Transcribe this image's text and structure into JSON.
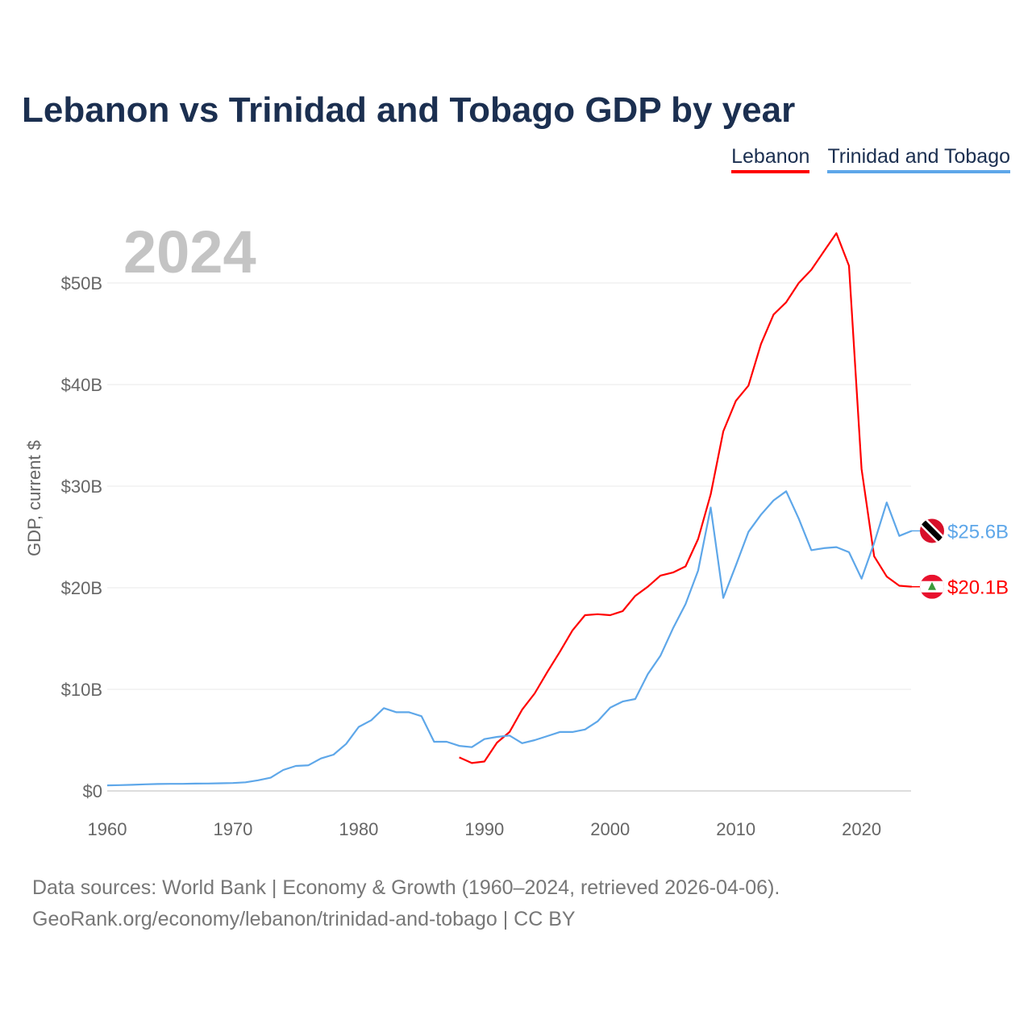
{
  "title": "Lebanon vs Trinidad and Tobago GDP by year",
  "year_label": "2024",
  "footer": {
    "line1": "Data sources: World Bank | Economy & Growth (1960–2024, retrieved 2026-04-06).",
    "line2": "GeoRank.org/economy/lebanon/trinidad-and-tobago | CC BY"
  },
  "chart_data": {
    "type": "line",
    "title": "Lebanon vs Trinidad and Tobago GDP by year",
    "xlabel": "",
    "ylabel": "GDP, current $",
    "xlim": [
      1960,
      2024
    ],
    "ylim": [
      0,
      55
    ],
    "grid": true,
    "legend_position": "top-right",
    "x_ticks": [
      "1960",
      "1970",
      "1980",
      "1990",
      "2000",
      "2010",
      "2020"
    ],
    "y_ticks": [
      {
        "v": 0,
        "label": "$0"
      },
      {
        "v": 10,
        "label": "$10B"
      },
      {
        "v": 20,
        "label": "$20B"
      },
      {
        "v": 30,
        "label": "$30B"
      },
      {
        "v": 40,
        "label": "$40B"
      },
      {
        "v": 50,
        "label": "$50B"
      }
    ],
    "series": [
      {
        "name": "Lebanon",
        "color": "#ff0000",
        "end_label": "$20.1B",
        "flag": "lebanon-flag",
        "start_year": 1988,
        "values": [
          3.3,
          2.75,
          2.9,
          4.75,
          5.8,
          8.0,
          9.6,
          11.7,
          13.7,
          15.8,
          17.3,
          17.4,
          17.3,
          17.7,
          19.2,
          20.1,
          21.2,
          21.5,
          22.1,
          24.8,
          29.2,
          35.4,
          38.4,
          39.9,
          44.0,
          46.9,
          48.1,
          50.0,
          51.3,
          53.1,
          54.9,
          51.7,
          31.7,
          23.1,
          21.1,
          20.2,
          20.1
        ]
      },
      {
        "name": "Trinidad and Tobago",
        "color": "#5ea7e9",
        "end_label": "$25.6B",
        "flag": "trinidad-flag",
        "start_year": 1960,
        "values": [
          0.55,
          0.57,
          0.6,
          0.65,
          0.68,
          0.7,
          0.7,
          0.72,
          0.73,
          0.75,
          0.78,
          0.85,
          1.05,
          1.3,
          2.06,
          2.46,
          2.52,
          3.2,
          3.57,
          4.63,
          6.3,
          6.96,
          8.15,
          7.75,
          7.75,
          7.36,
          4.84,
          4.84,
          4.44,
          4.31,
          5.1,
          5.32,
          5.45,
          4.7,
          5.0,
          5.4,
          5.8,
          5.8,
          6.05,
          6.85,
          8.2,
          8.8,
          9.05,
          11.5,
          13.3,
          16.0,
          18.4,
          21.7,
          27.9,
          19.0,
          22.2,
          25.5,
          27.2,
          28.6,
          29.5,
          26.8,
          23.7,
          23.9,
          24.0,
          23.5,
          20.9,
          24.4,
          28.4,
          25.1,
          25.6
        ]
      }
    ]
  }
}
